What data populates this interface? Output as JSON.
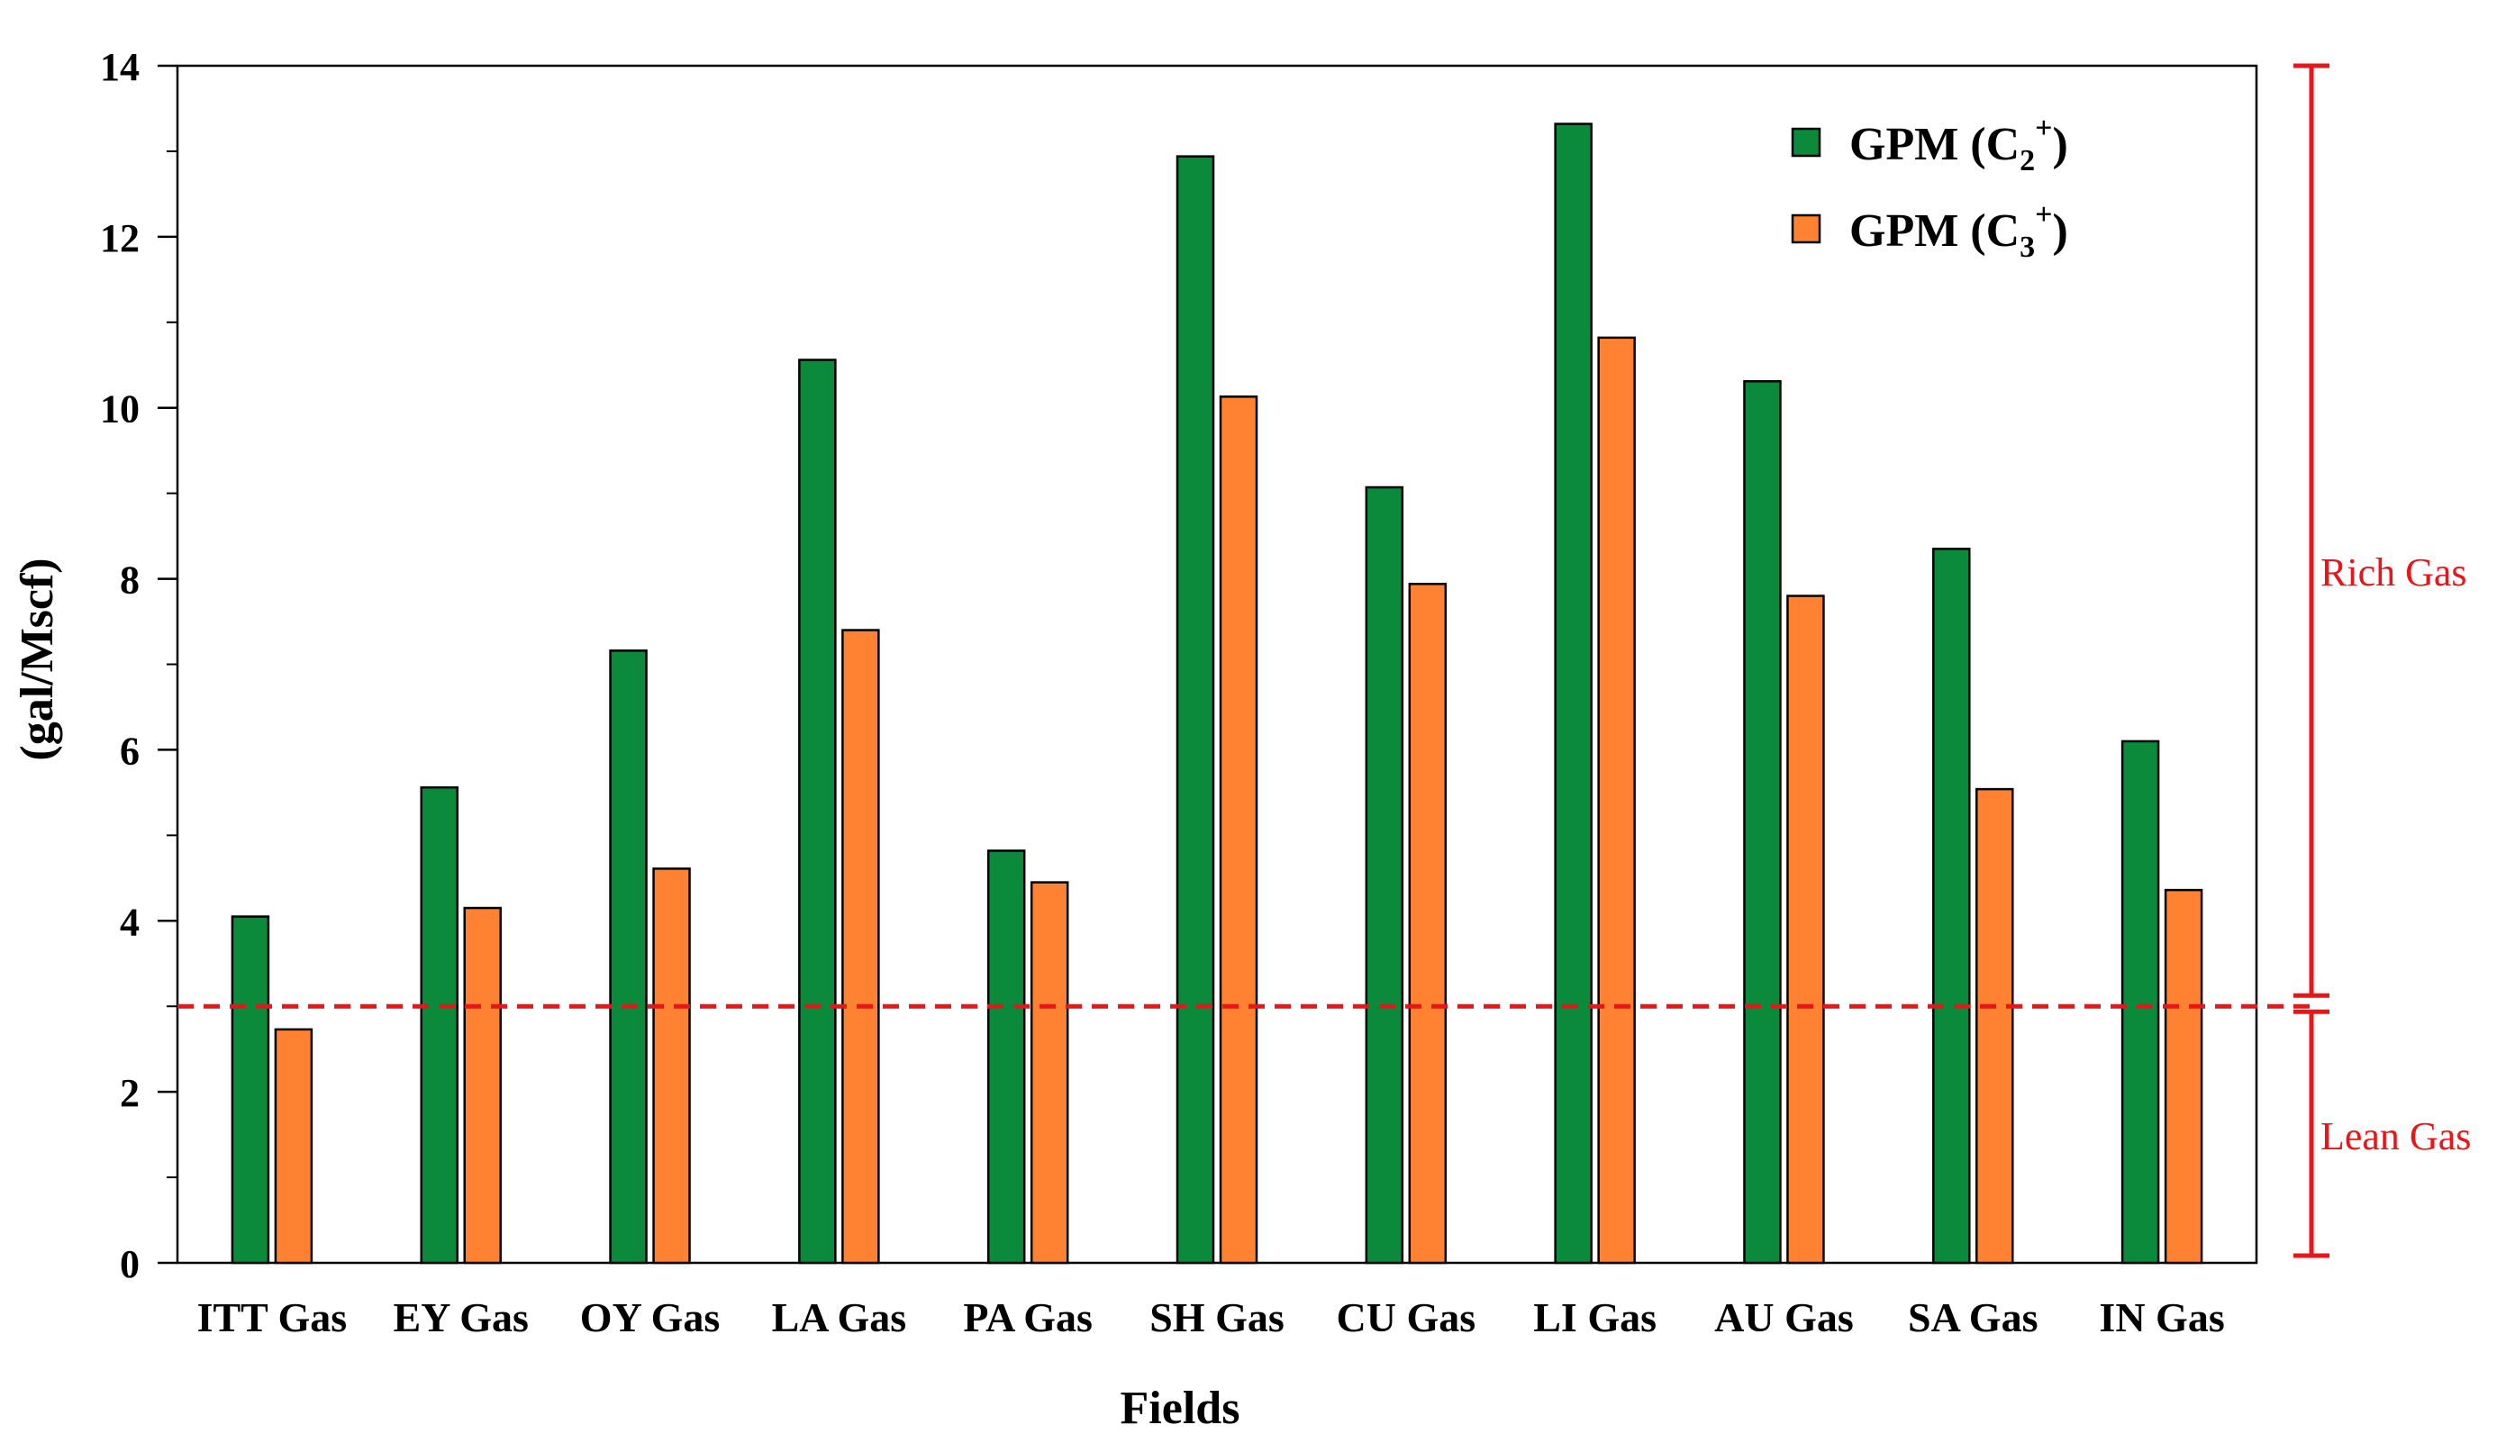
{
  "chart_data": {
    "type": "bar",
    "title": "",
    "xlabel": "Fields",
    "ylabel": "(gal/Mscf)",
    "ylim": [
      0,
      14
    ],
    "yticks": [
      "0",
      "2",
      "4",
      "6",
      "8",
      "10",
      "12",
      "14"
    ],
    "categories": [
      "ITT Gas",
      "EY Gas",
      "OY Gas",
      "LA Gas",
      "PA Gas",
      "SH Gas",
      "CU Gas",
      "LI Gas",
      "AU Gas",
      "SA Gas",
      "IN Gas"
    ],
    "series": [
      {
        "name": "GPM (C2+)",
        "legend_main": "GPM (C",
        "legend_sub": "2",
        "legend_sup": "+",
        "legend_close": ")",
        "color": "#0a8a3a",
        "values": [
          4.05,
          5.56,
          7.16,
          10.56,
          4.82,
          12.94,
          9.07,
          13.32,
          10.31,
          8.35,
          6.1
        ]
      },
      {
        "name": "GPM (C3+)",
        "legend_main": "GPM (C",
        "legend_sub": "3",
        "legend_sup": "+",
        "legend_close": ")",
        "color": "#ff8233",
        "values": [
          2.73,
          4.15,
          4.61,
          7.4,
          4.45,
          10.13,
          7.94,
          10.82,
          7.8,
          5.54,
          4.36
        ]
      }
    ],
    "threshold": {
      "value": 3,
      "color": "#e8161b"
    },
    "annotations": {
      "rich": "Rich Gas",
      "lean": "Lean Gas"
    }
  }
}
